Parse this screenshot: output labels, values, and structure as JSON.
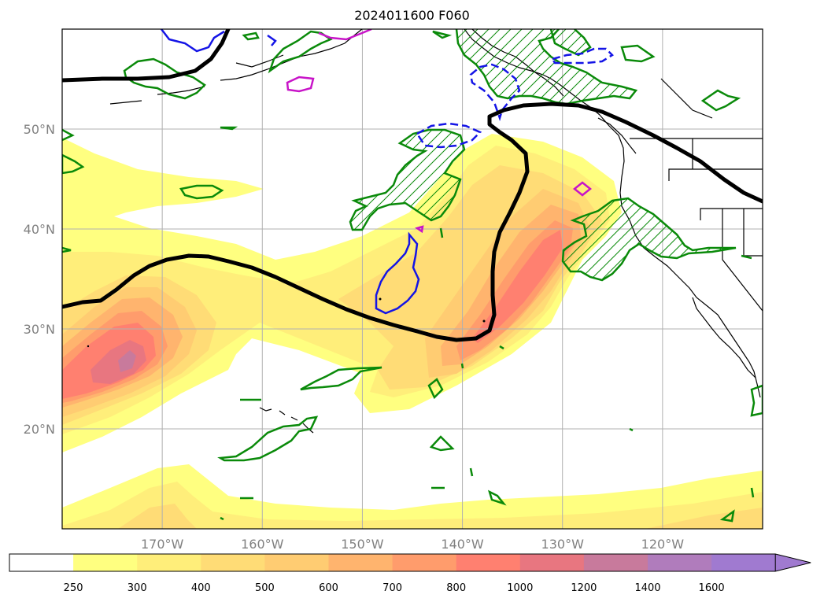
{
  "title": "2024011600 F060",
  "map": {
    "lon_range": [
      -180,
      -110
    ],
    "lat_range": [
      10,
      60
    ],
    "gridlines": true,
    "lat_ticks": [
      {
        "value": 20,
        "label": "20°N"
      },
      {
        "value": 30,
        "label": "30°N"
      },
      {
        "value": 40,
        "label": "40°N"
      },
      {
        "value": 50,
        "label": "50°N"
      }
    ],
    "lon_ticks": [
      {
        "value": -170,
        "label": "170°W"
      },
      {
        "value": -160,
        "label": "160°W"
      },
      {
        "value": -150,
        "label": "150°W"
      },
      {
        "value": -140,
        "label": "140°W"
      },
      {
        "value": -130,
        "label": "130°W"
      },
      {
        "value": -120,
        "label": "120°W"
      }
    ]
  },
  "colorbar": {
    "levels": [
      "250",
      "300",
      "400",
      "500",
      "600",
      "700",
      "800",
      "1000",
      "1200",
      "1400",
      "1600"
    ],
    "colors": [
      "#ffffff",
      "#ffff80",
      "#ffee7a",
      "#ffdc76",
      "#ffcc72",
      "#ffb46e",
      "#ff9c6c",
      "#ff8070",
      "#e87680",
      "#c87a9c",
      "#b07cbc",
      "#a07ad0"
    ],
    "extend": "max"
  },
  "colors": {
    "contour_black": "#000000",
    "contour_green": "#0a8a0a",
    "contour_blue": "#1414e6",
    "contour_magenta": "#c814c8",
    "coastline": "#000000"
  }
}
